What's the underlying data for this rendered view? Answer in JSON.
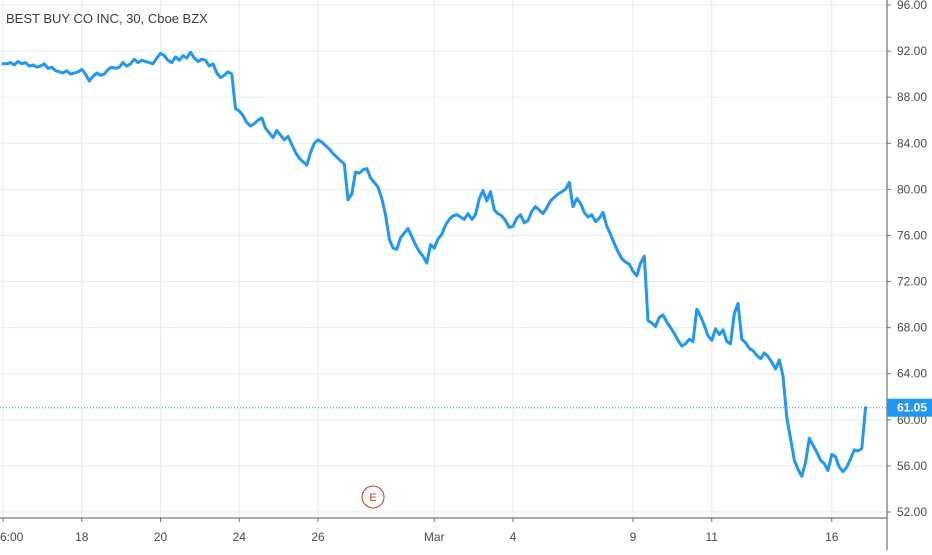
{
  "chart_data": {
    "type": "line",
    "title": "BEST BUY CO INC, 30, Cboe BZX",
    "symbol_name": "BEST BUY CO INC",
    "interval": "30",
    "exchange": "Cboe BZX",
    "price_axis_ticks": [
      "96.00",
      "92.00",
      "88.00",
      "84.00",
      "80.00",
      "76.00",
      "72.00",
      "68.00",
      "64.00",
      "60.00",
      "56.00",
      "52.00"
    ],
    "price_axis_tick_values": [
      96,
      92,
      88,
      84,
      80,
      76,
      72,
      68,
      64,
      60,
      56,
      52
    ],
    "time_axis_labels": [
      "6:00",
      "18",
      "20",
      "24",
      "26",
      "Mar",
      "4",
      "9",
      "11",
      "16"
    ],
    "time_axis_label_bar_index": [
      0,
      21,
      42,
      63,
      84,
      115,
      136,
      168,
      189,
      221
    ],
    "ylim": [
      51.5,
      96.5
    ],
    "grid": true,
    "last_price": 61.05,
    "last_price_label": "61.05",
    "event_marker": {
      "label": "E",
      "bar_index": 96
    },
    "colors": {
      "line": "#2196f3",
      "grid": "#e8ebf0",
      "axis_text": "#4a4a4a",
      "price_badge": "#2196f3",
      "price_line": "#2196f3",
      "event": "#c0392b"
    },
    "series": [
      {
        "values": [
          90.9,
          90.9,
          91.0,
          90.8,
          91.1,
          90.9,
          91.0,
          90.7,
          90.8,
          90.6,
          90.7,
          90.9,
          90.5,
          90.6,
          90.3,
          90.2,
          90.1,
          90.3,
          90.0,
          90.1,
          90.2,
          90.4,
          90.0,
          89.4,
          89.8,
          90.1,
          89.9,
          90.0,
          90.4,
          90.6,
          90.5,
          90.6,
          91.0,
          90.7,
          90.9,
          91.3,
          91.0,
          91.2,
          91.1,
          91.0,
          90.9,
          91.4,
          91.8,
          91.6,
          91.2,
          91.0,
          91.5,
          91.2,
          91.6,
          91.4,
          91.9,
          91.4,
          91.1,
          91.3,
          91.2,
          90.7,
          90.9,
          90.1,
          89.7,
          89.9,
          90.2,
          90.0,
          87.0,
          86.8,
          86.4,
          85.8,
          85.5,
          85.7,
          86.0,
          86.2,
          85.3,
          84.9,
          84.5,
          85.1,
          84.7,
          84.3,
          84.6,
          83.9,
          83.2,
          82.7,
          82.4,
          82.1,
          83.2,
          84.0,
          84.3,
          84.1,
          83.8,
          83.5,
          83.1,
          82.8,
          82.5,
          82.2,
          79.1,
          79.6,
          81.5,
          81.4,
          81.7,
          81.8,
          81.0,
          80.6,
          80.2,
          79.2,
          77.8,
          75.7,
          74.9,
          74.8,
          75.8,
          76.2,
          76.6,
          75.9,
          75.2,
          74.6,
          74.2,
          73.6,
          75.2,
          74.9,
          75.7,
          76.1,
          76.9,
          77.4,
          77.7,
          77.8,
          77.6,
          77.4,
          77.9,
          77.4,
          77.8,
          79.2,
          79.9,
          79.0,
          79.8,
          78.2,
          77.9,
          77.7,
          77.3,
          76.7,
          76.8,
          77.5,
          77.8,
          77.1,
          77.3,
          78.1,
          78.5,
          78.2,
          77.9,
          78.4,
          79.0,
          79.3,
          79.6,
          79.8,
          80.0,
          80.6,
          78.5,
          79.2,
          78.8,
          78.0,
          77.6,
          77.8,
          77.2,
          77.5,
          78.0,
          76.8,
          76.1,
          75.3,
          74.6,
          74.0,
          73.7,
          73.5,
          72.9,
          72.5,
          73.6,
          74.2,
          68.6,
          68.4,
          68.1,
          68.9,
          69.1,
          68.5,
          68.0,
          67.5,
          66.9,
          66.4,
          66.6,
          67.0,
          66.8,
          69.6,
          69.0,
          68.2,
          67.3,
          66.9,
          67.9,
          67.4,
          67.8,
          66.8,
          66.6,
          69.2,
          70.1,
          67.0,
          66.7,
          66.2,
          66.0,
          65.6,
          65.3,
          65.8,
          65.5,
          65.0,
          64.4,
          65.2,
          63.8,
          60.2,
          58.4,
          56.5,
          55.7,
          55.1,
          56.3,
          58.4,
          57.8,
          57.2,
          56.5,
          56.2,
          55.6,
          57.0,
          56.8,
          55.9,
          55.5,
          55.9,
          56.6,
          57.4,
          57.3,
          57.5,
          61.05
        ]
      }
    ]
  }
}
